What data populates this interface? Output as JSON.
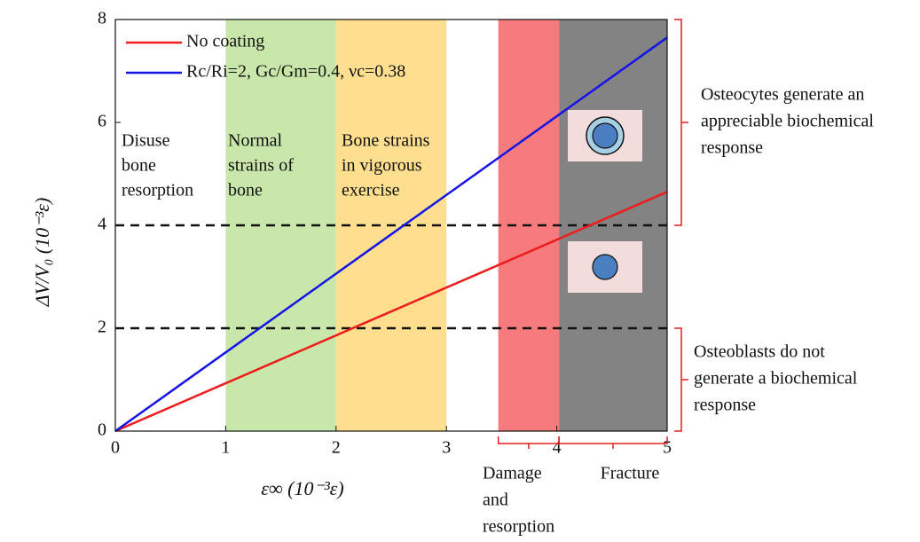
{
  "chart_data": {
    "type": "line",
    "x": [
      0,
      5
    ],
    "series": [
      {
        "name": "No coating",
        "color": "#ee1c1c",
        "values": [
          0,
          4.65
        ]
      },
      {
        "name": "Rc/Ri=2, Gc/Gm=0.4, νc=0.38",
        "color": "#1414e6",
        "values": [
          0,
          7.65
        ]
      }
    ],
    "xlim": [
      0,
      5
    ],
    "ylim": [
      0,
      8
    ],
    "xticks": [
      0,
      1,
      2,
      3,
      4,
      5
    ],
    "yticks": [
      0,
      2,
      4,
      6,
      8
    ],
    "xlabel": "ε∞ (10⁻³ε)",
    "ylabel": "ΔV/V₀ (10⁻³ε)",
    "legend": "upper left",
    "hlines": [
      4,
      2
    ],
    "bands": [
      {
        "x": [
          1,
          2
        ],
        "color": "#c9e7aa"
      },
      {
        "x": [
          2,
          3
        ],
        "color": "#fddf8f"
      },
      {
        "x": [
          3.47,
          4.02
        ],
        "color": "#f77a7d"
      },
      {
        "x": [
          4.02,
          5
        ],
        "color": "#838383"
      }
    ],
    "region_labels": [
      [
        "Disuse",
        "bone",
        "resorption"
      ],
      [
        "Normal",
        "strains of",
        "bone"
      ],
      [
        "Bone strains",
        "in vigorous",
        "exercise"
      ]
    ],
    "bottom_labels": [
      [
        "Damage",
        "and",
        "resorption"
      ],
      [
        "Fracture"
      ]
    ],
    "annotations": [
      {
        "range": [
          4,
          8
        ],
        "lines": [
          "Osteocytes generate an",
          "appreciable biochemical",
          "response"
        ]
      },
      {
        "range": [
          0,
          2
        ],
        "lines": [
          "Osteoblasts do not",
          "generate a biochemical",
          "response"
        ]
      }
    ]
  }
}
